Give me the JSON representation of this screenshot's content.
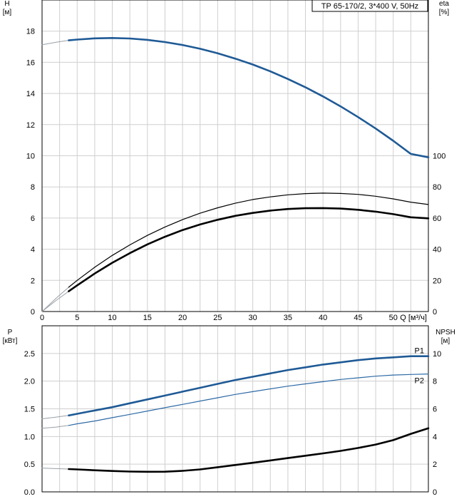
{
  "colors": {
    "grid": "#cfcfcf",
    "head_curve": "#1f5a96",
    "eta_curve": "#000000",
    "p1_curve": "#1f5a96",
    "p2_curve": "#2e6aa6",
    "npsh_curve": "#000000",
    "extrapolation": "#9aa0a6"
  },
  "chart_data": [
    {
      "type": "line",
      "title": "TP 65-170/2, 3*400 V, 50Hz",
      "xlabel": "Q [м³/ч]",
      "ylabel": "H\n[м]",
      "y2label": "eta\n[%]",
      "xlim": [
        0,
        55
      ],
      "ylim": [
        0,
        20
      ],
      "y2lim": [
        0,
        200
      ],
      "x_ticks": [
        0,
        5,
        10,
        15,
        20,
        25,
        30,
        35,
        40,
        45,
        50
      ],
      "y_ticks": [
        0,
        2,
        4,
        6,
        8,
        10,
        12,
        14,
        16,
        18
      ],
      "y2_ticks": [
        0,
        20,
        40,
        60,
        80,
        100
      ],
      "grid": true,
      "series": [
        {
          "key": "head",
          "axis": "left",
          "x": [
            3.8,
            5,
            7.5,
            10,
            12.5,
            15,
            17.5,
            20,
            22.5,
            25,
            27.5,
            30,
            32.5,
            35,
            37.5,
            40,
            42.5,
            45,
            47.5,
            50,
            52.5,
            55
          ],
          "y": [
            17.41,
            17.46,
            17.54,
            17.56,
            17.53,
            17.44,
            17.3,
            17.11,
            16.87,
            16.58,
            16.24,
            15.86,
            15.42,
            14.93,
            14.4,
            13.81,
            13.17,
            12.48,
            11.75,
            10.96,
            10.12,
            9.9
          ],
          "extrapolated": {
            "x": [
              0,
              1,
              2,
              3,
              3.8
            ],
            "y": [
              17.12,
              17.21,
              17.29,
              17.36,
              17.41
            ]
          }
        },
        {
          "key": "eta",
          "axis": "right",
          "x": [
            3.8,
            5,
            7.5,
            10,
            12.5,
            15,
            17.5,
            20,
            22.5,
            25,
            27.5,
            30,
            32.5,
            35,
            37.5,
            40,
            42.5,
            45,
            47.5,
            50,
            52.5,
            55
          ],
          "y": [
            15.6,
            20.0,
            28.4,
            36.0,
            42.8,
            48.9,
            54.3,
            59.0,
            63.1,
            66.6,
            69.5,
            71.9,
            73.6,
            74.9,
            75.7,
            76.0,
            75.8,
            75.2,
            74.0,
            72.3,
            70.2,
            68.7
          ],
          "extrapolated": {
            "x": [
              0,
              2,
              3.8
            ],
            "y": [
              0,
              8.5,
              15.6
            ]
          }
        },
        {
          "key": "eta_hydraulic",
          "axis": "right",
          "x": [
            3.8,
            5,
            7.5,
            10,
            12.5,
            15,
            17.5,
            20,
            22.5,
            25,
            27.5,
            30,
            32.5,
            35,
            37.5,
            40,
            42.5,
            45,
            47.5,
            50,
            52.5,
            55
          ],
          "y": [
            13.0,
            16.8,
            24.4,
            31.3,
            37.5,
            43.1,
            48.0,
            52.3,
            55.9,
            58.9,
            61.4,
            63.3,
            64.8,
            65.8,
            66.3,
            66.4,
            66.1,
            65.3,
            64.1,
            62.5,
            60.5,
            59.8
          ],
          "extrapolated": {
            "x": [
              0,
              2,
              3.8
            ],
            "y": [
              0,
              7.1,
              13.0
            ]
          }
        }
      ]
    },
    {
      "type": "line",
      "xlabel": "",
      "ylabel": "P\n[кВт]",
      "y2label": "NPSH\n[м]",
      "xlim": [
        0,
        55
      ],
      "ylim": [
        0,
        3
      ],
      "y2lim": [
        0,
        12
      ],
      "y_ticks": [
        0.0,
        0.5,
        1.0,
        1.5,
        2.0,
        2.5
      ],
      "y_tick_labels": [
        "0.0",
        "0.5",
        "1.0",
        "1.5",
        "2.0",
        "2.5"
      ],
      "y2_ticks": [
        0,
        2,
        4,
        6,
        8,
        10
      ],
      "grid": true,
      "series": [
        {
          "key": "p1",
          "name": "P1",
          "axis": "left",
          "x": [
            3.8,
            5,
            7.5,
            10,
            12.5,
            15,
            17.5,
            20,
            22.5,
            25,
            27.5,
            30,
            32.5,
            35,
            37.5,
            40,
            42.5,
            45,
            47.5,
            50,
            52.5,
            55
          ],
          "y": [
            1.38,
            1.41,
            1.47,
            1.53,
            1.6,
            1.67,
            1.74,
            1.81,
            1.88,
            1.95,
            2.02,
            2.08,
            2.14,
            2.2,
            2.25,
            2.3,
            2.34,
            2.38,
            2.41,
            2.43,
            2.45,
            2.45
          ],
          "extrapolated": {
            "x": [
              0,
              2,
              3.8
            ],
            "y": [
              1.32,
              1.35,
              1.38
            ]
          }
        },
        {
          "key": "p2",
          "name": "P2",
          "axis": "left",
          "x": [
            3.8,
            5,
            7.5,
            10,
            12.5,
            15,
            17.5,
            20,
            22.5,
            25,
            27.5,
            30,
            32.5,
            35,
            37.5,
            40,
            42.5,
            45,
            47.5,
            50,
            52.5,
            55
          ],
          "y": [
            1.2,
            1.23,
            1.28,
            1.34,
            1.4,
            1.46,
            1.52,
            1.58,
            1.64,
            1.7,
            1.76,
            1.81,
            1.86,
            1.91,
            1.95,
            1.99,
            2.03,
            2.06,
            2.09,
            2.11,
            2.12,
            2.13
          ],
          "extrapolated": {
            "x": [
              0,
              2,
              3.8
            ],
            "y": [
              1.15,
              1.17,
              1.2
            ]
          }
        },
        {
          "key": "npsh",
          "axis": "right",
          "x": [
            3.8,
            5,
            7.5,
            10,
            12.5,
            15,
            17.5,
            20,
            22.5,
            25,
            27.5,
            30,
            32.5,
            35,
            37.5,
            40,
            42.5,
            45,
            47.5,
            50,
            52.5,
            55
          ],
          "y": [
            1.65,
            1.62,
            1.56,
            1.51,
            1.47,
            1.45,
            1.46,
            1.52,
            1.62,
            1.78,
            1.94,
            2.1,
            2.27,
            2.44,
            2.61,
            2.78,
            2.96,
            3.17,
            3.42,
            3.74,
            4.19,
            4.6
          ],
          "extrapolated": {
            "x": [
              0,
              2,
              3.8
            ],
            "y": [
              1.72,
              1.68,
              1.65
            ]
          }
        }
      ]
    }
  ]
}
